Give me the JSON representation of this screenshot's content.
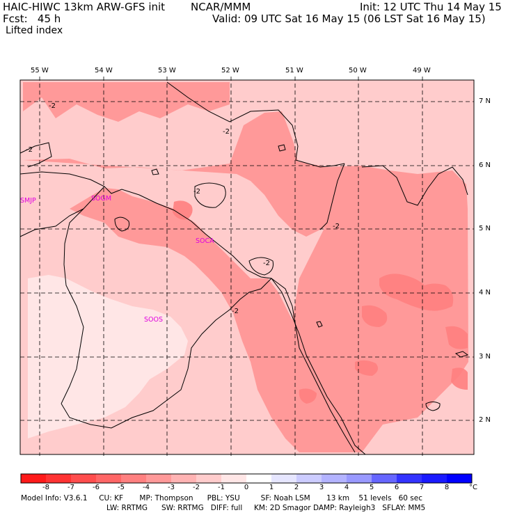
{
  "header": {
    "model": "HAIC-HIWC 13km ARW-GFS init",
    "org": "NCAR/MMM",
    "init": "Init: 12 UTC Thu 14 May 15",
    "fcst": "Fcst:   45 h",
    "valid": "Valid: 09 UTC Sat 16 May 15 (06 LST Sat 16 May 15)",
    "field": "Lifted index"
  },
  "longitude_labels": [
    "55 W",
    "54 W",
    "53 W",
    "52 W",
    "51 W",
    "50 W",
    "49 W"
  ],
  "latitude_labels": [
    "7 N",
    "6 N",
    "5 N",
    "4 N",
    "3 N",
    "2 N"
  ],
  "stations": [
    "SMJP",
    "SOGM",
    "SOCA",
    "SOOS"
  ],
  "contour_labels": [
    "-2",
    "-2",
    "-2",
    "-2",
    "-2",
    "-2",
    "-2"
  ],
  "colorbar": {
    "labels": [
      "-8",
      "-7",
      "-6",
      "-5",
      "-4",
      "-3",
      "-2",
      "-1",
      "0",
      "1",
      "2",
      "3",
      "4",
      "5",
      "6",
      "7",
      "8"
    ],
    "unit": "°C",
    "colors": [
      "#ff1a1a",
      "#ff3333",
      "#ff4d4d",
      "#ff6666",
      "#ff8080",
      "#ff9999",
      "#ffb3b3",
      "#ffcccc",
      "#ffe6e6",
      "#ffffff",
      "#e6e6ff",
      "#ccccff",
      "#b3b3ff",
      "#9999ff",
      "#6666ff",
      "#3333ff",
      "#1a1aff",
      "#0000ff"
    ]
  },
  "footer": {
    "line1": "Model Info: V3.6.1     CU: KF       MP: Thompson      PBL: YSU         SF: Noah LSM       13 km    51 levels   60 sec",
    "line2": "LW: RRTMG      SW: RRTMG   DIFF: full     KM: 2D Smagor DAMP: Rayleigh3   SFLAY: MM5"
  }
}
